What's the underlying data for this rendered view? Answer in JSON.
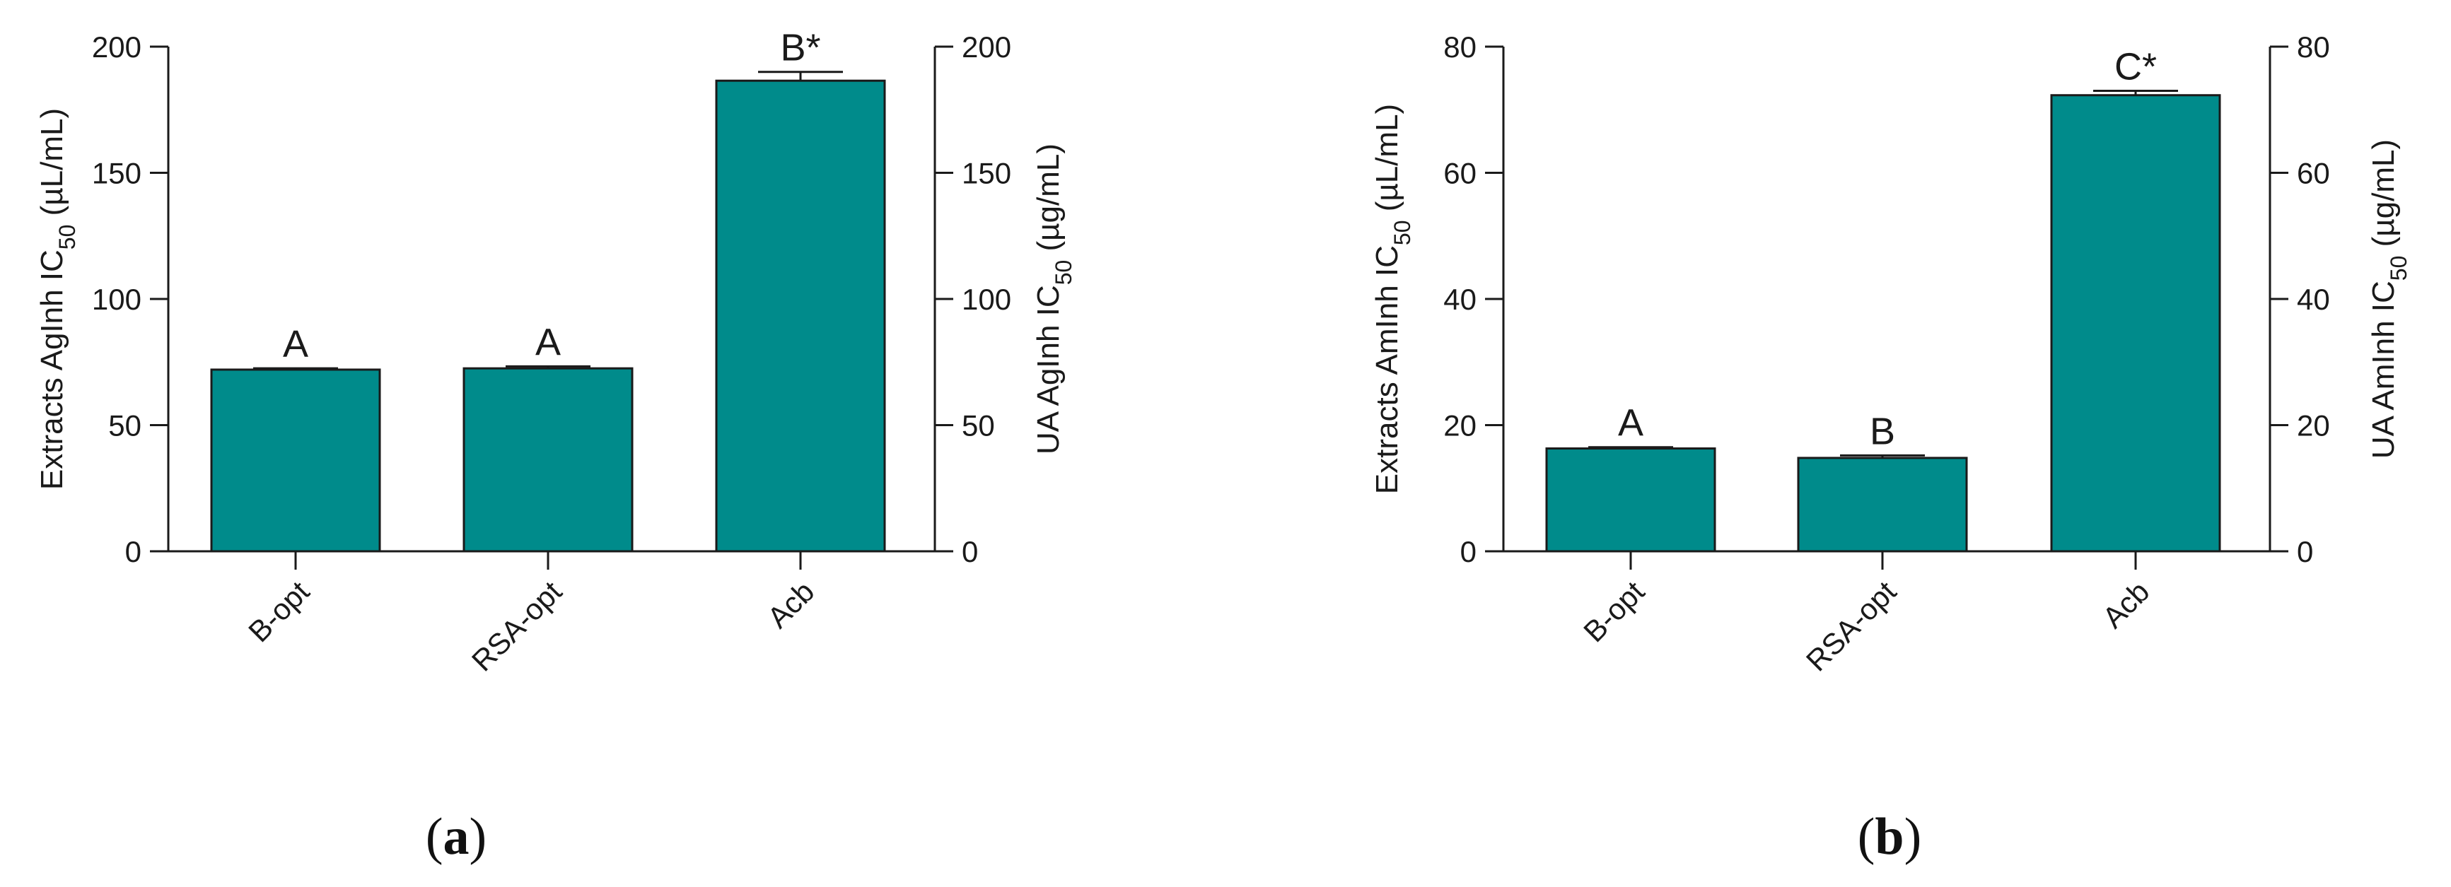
{
  "chart_data": [
    {
      "type": "bar",
      "panel_label": "a",
      "categories": [
        "B-opt",
        "RSA-opt",
        "Acb"
      ],
      "values": [
        72,
        72.5,
        186.5
      ],
      "errors": [
        0.5,
        0.8,
        3.5
      ],
      "significance": [
        "A",
        "A",
        "B*"
      ],
      "ylabel_left": "Extracts AgInh IC",
      "ylabel_left_sub": "50",
      "ylabel_left_unit": " (µL/mL)",
      "ylabel_right": "UA AgInh IC",
      "ylabel_right_sub": "50",
      "ylabel_right_unit": " (µg/mL)",
      "ylim": [
        0,
        200
      ],
      "yticks": [
        "0",
        "50",
        "100",
        "150",
        "200"
      ],
      "bar_color": "#008B8B",
      "grid": false,
      "legend": "none"
    },
    {
      "type": "bar",
      "panel_label": "b",
      "categories": [
        "B-opt",
        "RSA-opt",
        "Acb"
      ],
      "values": [
        16.3,
        14.8,
        72.3
      ],
      "errors": [
        0.2,
        0.4,
        0.7
      ],
      "significance": [
        "A",
        "B",
        "C*"
      ],
      "ylabel_left": "Extracts AmInh IC",
      "ylabel_left_sub": "50",
      "ylabel_left_unit": " (µL/mL)",
      "ylabel_right": "UA AmInh IC",
      "ylabel_right_sub": "50",
      "ylabel_right_unit": " (µg/mL)",
      "ylim": [
        0,
        80
      ],
      "yticks": [
        "0",
        "20",
        "40",
        "60",
        "80"
      ],
      "bar_color": "#008B8B",
      "grid": false,
      "legend": "none"
    }
  ]
}
